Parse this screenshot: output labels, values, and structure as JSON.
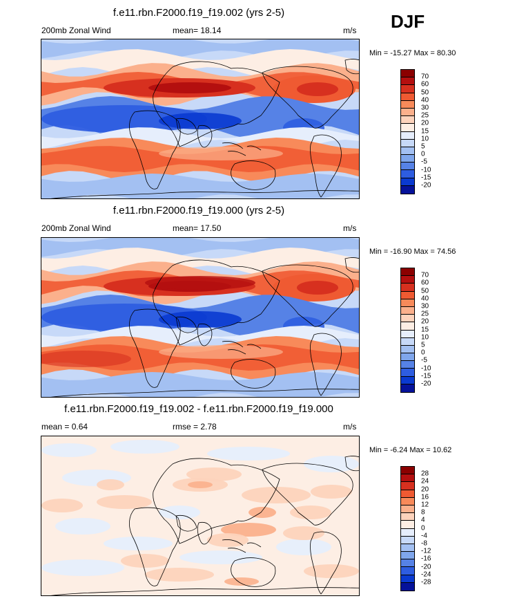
{
  "season": "DJF",
  "panels": [
    {
      "title": "f.e11.rbn.F2000.f19_f19.002 (yrs 2-5)",
      "left_label": "200mb Zonal Wind",
      "center_label": "mean=  18.14",
      "units": "m/s",
      "minmax": "Min = -15.27 Max =  80.30",
      "colorbar_labels": [
        "70",
        "60",
        "50",
        "40",
        "30",
        "25",
        "20",
        "15",
        "10",
        "5",
        "0",
        "-5",
        "-10",
        "-15",
        "-20"
      ],
      "colors": [
        "#8b0000",
        "#b40f0f",
        "#d7301f",
        "#ef5a32",
        "#f88a5a",
        "#fbb08c",
        "#fdd3bc",
        "#fdeee4",
        "#e6eefc",
        "#c7d9f8",
        "#a3c0f2",
        "#7fa6ec",
        "#5682e6",
        "#2e5de0",
        "#0a3ad0",
        "#05129a"
      ]
    },
    {
      "title": "f.e11.rbn.F2000.f19_f19.000 (yrs 2-5)",
      "left_label": "200mb Zonal Wind",
      "center_label": "mean=  17.50",
      "units": "m/s",
      "minmax": "Min = -16.90 Max =  74.56",
      "colorbar_labels": [
        "70",
        "60",
        "50",
        "40",
        "30",
        "25",
        "20",
        "15",
        "10",
        "5",
        "0",
        "-5",
        "-10",
        "-15",
        "-20"
      ],
      "colors": [
        "#8b0000",
        "#b40f0f",
        "#d7301f",
        "#ef5a32",
        "#f88a5a",
        "#fbb08c",
        "#fdd3bc",
        "#fdeee4",
        "#e6eefc",
        "#c7d9f8",
        "#a3c0f2",
        "#7fa6ec",
        "#5682e6",
        "#2e5de0",
        "#0a3ad0",
        "#05129a"
      ]
    },
    {
      "title": "f.e11.rbn.F2000.f19_f19.002 - f.e11.rbn.F2000.f19_f19.000",
      "left_label": "mean =   0.64",
      "center_label": "rmse =   2.78",
      "units": "m/s",
      "minmax": "Min =  -6.24 Max =  10.62",
      "colorbar_labels": [
        "28",
        "24",
        "20",
        "16",
        "12",
        "8",
        "4",
        "0",
        "-4",
        "-8",
        "-12",
        "-16",
        "-20",
        "-24",
        "-28"
      ],
      "colors": [
        "#8b0000",
        "#b40f0f",
        "#d7301f",
        "#ef5a32",
        "#f88a5a",
        "#fbb08c",
        "#fdd3bc",
        "#fdeee4",
        "#e6eefc",
        "#c7d9f8",
        "#a3c0f2",
        "#7fa6ec",
        "#5682e6",
        "#2e5de0",
        "#0a3ad0",
        "#05129a"
      ]
    }
  ]
}
